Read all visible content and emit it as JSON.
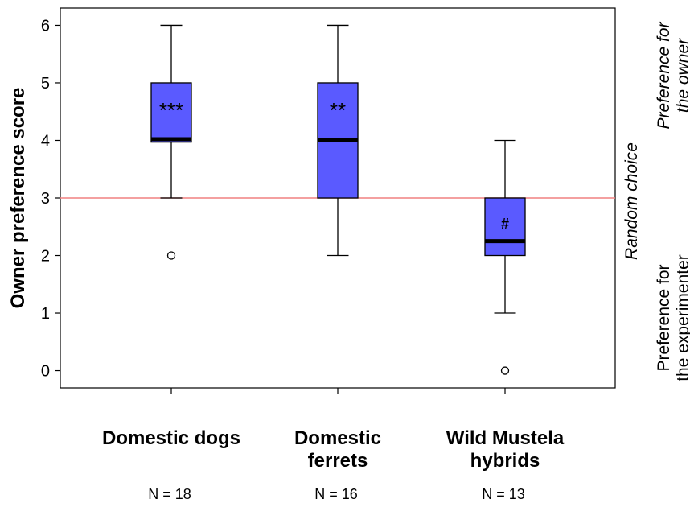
{
  "chart_data": {
    "type": "box",
    "ylabel": "Owner preference score",
    "ylim": [
      -0.3,
      6.3
    ],
    "yticks": [
      0,
      1,
      2,
      3,
      4,
      5,
      6
    ],
    "reference_line": {
      "y": 3,
      "color": "#f08080"
    },
    "box_color": "#5a5aff",
    "categories": [
      {
        "name": "Domestic dogs",
        "lines": [
          "Domestic dogs"
        ],
        "n": "N = 18",
        "whisker_low": 3,
        "q1": 3.97,
        "median": 4.02,
        "q3": 5,
        "whisker_high": 6,
        "outliers": [
          2
        ],
        "sig": "***",
        "sig_y": 4.55
      },
      {
        "name": "Domestic ferrets",
        "lines": [
          "Domestic",
          "ferrets"
        ],
        "n": "N = 16",
        "whisker_low": 2,
        "q1": 3,
        "median": 4,
        "q3": 5,
        "whisker_high": 6,
        "outliers": [],
        "sig": "**",
        "sig_y": 4.55
      },
      {
        "name": "Wild Mustela hybrids",
        "lines": [
          "Wild Mustela",
          "hybrids"
        ],
        "n": "N = 13",
        "whisker_low": 1,
        "q1": 2,
        "median": 2.25,
        "q3": 3,
        "whisker_high": 4,
        "outliers": [
          0
        ],
        "sig": "#",
        "sig_y": 2.55
      }
    ],
    "side_labels": {
      "top": [
        "Preference for",
        "the owner"
      ],
      "middle": "Random choice",
      "bottom": [
        "Preference for",
        "the experimenter"
      ]
    }
  }
}
